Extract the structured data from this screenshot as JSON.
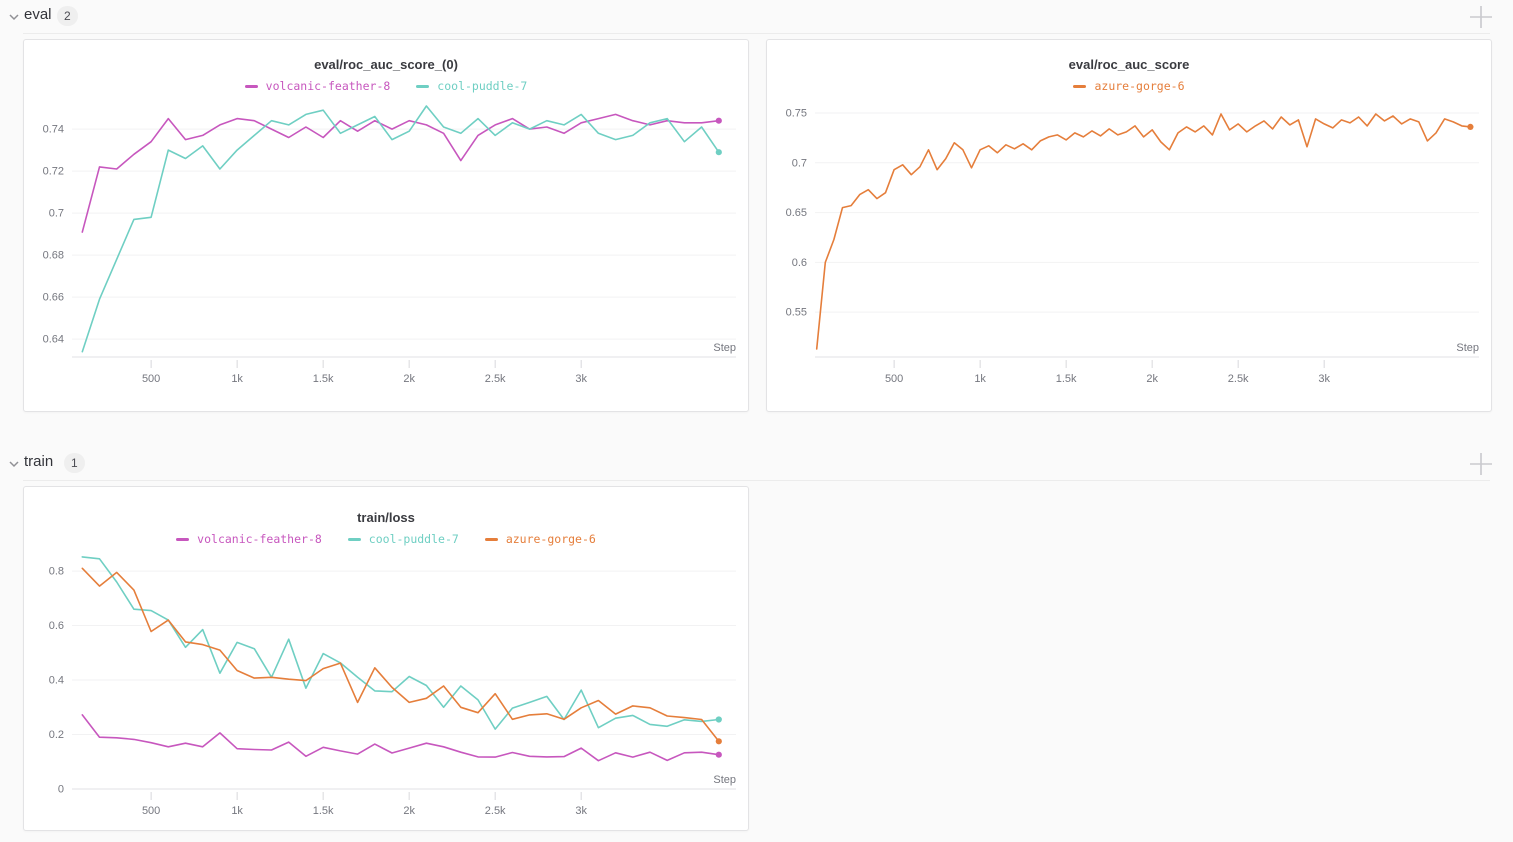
{
  "page": {
    "background": "#fafafa"
  },
  "icons": {
    "chevron_down": "v-shape polyline",
    "plus": "+"
  },
  "sections": [
    {
      "label": "eval",
      "count": "2"
    },
    {
      "label": "train",
      "count": "1"
    }
  ],
  "runs": [
    {
      "name": "volcanic-feather-8",
      "color": "#c757be"
    },
    {
      "name": "cool-puddle-7",
      "color": "#6fcfc3"
    },
    {
      "name": "azure-gorge-6",
      "color": "#e57e3b"
    }
  ],
  "axis_style": {
    "tick_label_color": "#75777f",
    "grid_color": "#f2f2f3",
    "axis_line_color": "#e6e6e9",
    "tick_mark_color": "#d8d8dc"
  },
  "chart_data": [
    {
      "type": "line",
      "title": "eval/roc_auc_score_(0)",
      "xlabel": "Step",
      "xlim": [
        40,
        3900
      ],
      "ylim": [
        0.6315,
        0.7515
      ],
      "xticks": {
        "values": [
          500,
          1000,
          1500,
          2000,
          2500,
          3000
        ],
        "labels": [
          "500",
          "1k",
          "1.5k",
          "2k",
          "2.5k",
          "3k"
        ]
      },
      "yticks": {
        "values": [
          0.74,
          0.72,
          0.7,
          0.68,
          0.66,
          0.64
        ],
        "labels": [
          "0.74",
          "0.72",
          "0.7",
          "0.68",
          "0.66",
          "0.64"
        ]
      },
      "grid": true,
      "legend_position": "top",
      "x": [
        100,
        200,
        300,
        400,
        500,
        600,
        700,
        800,
        900,
        1000,
        1100,
        1200,
        1300,
        1400,
        1500,
        1600,
        1700,
        1800,
        1900,
        2000,
        2100,
        2200,
        2300,
        2400,
        2500,
        2600,
        2700,
        2800,
        2900,
        3000,
        3100,
        3200,
        3300,
        3400,
        3500,
        3600,
        3700,
        3800
      ],
      "series": [
        {
          "name": "volcanic-feather-8",
          "color": "#c757be",
          "end_dot": true,
          "values": [
            0.691,
            0.722,
            0.721,
            0.728,
            0.734,
            0.745,
            0.735,
            0.737,
            0.742,
            0.745,
            0.744,
            0.74,
            0.736,
            0.741,
            0.736,
            0.744,
            0.739,
            0.744,
            0.74,
            0.744,
            0.742,
            0.738,
            0.725,
            0.737,
            0.742,
            0.745,
            0.74,
            0.741,
            0.738,
            0.743,
            0.745,
            0.747,
            0.744,
            0.742,
            0.744,
            0.743,
            0.743,
            0.744
          ]
        },
        {
          "name": "cool-puddle-7",
          "color": "#6fcfc3",
          "end_dot": true,
          "values": [
            0.634,
            0.659,
            0.678,
            0.697,
            0.698,
            0.73,
            0.726,
            0.732,
            0.721,
            0.73,
            0.737,
            0.744,
            0.742,
            0.747,
            0.749,
            0.738,
            0.742,
            0.746,
            0.735,
            0.739,
            0.751,
            0.741,
            0.738,
            0.745,
            0.737,
            0.743,
            0.74,
            0.744,
            0.742,
            0.747,
            0.738,
            0.735,
            0.737,
            0.743,
            0.745,
            0.734,
            0.741,
            0.729
          ]
        }
      ]
    },
    {
      "type": "line",
      "title": "eval/roc_auc_score",
      "xlabel": "Step",
      "xlim": [
        40,
        3900
      ],
      "ylim": [
        0.505,
        0.758
      ],
      "xticks": {
        "values": [
          500,
          1000,
          1500,
          2000,
          2500,
          3000
        ],
        "labels": [
          "500",
          "1k",
          "1.5k",
          "2k",
          "2.5k",
          "3k"
        ]
      },
      "yticks": {
        "values": [
          0.75,
          0.7,
          0.65,
          0.6,
          0.55
        ],
        "labels": [
          "0.75",
          "0.7",
          "0.65",
          "0.6",
          "0.55"
        ]
      },
      "grid": true,
      "legend_position": "top",
      "x": [
        50,
        100,
        150,
        200,
        250,
        300,
        350,
        400,
        450,
        500,
        550,
        600,
        650,
        700,
        750,
        800,
        850,
        900,
        950,
        1000,
        1050,
        1100,
        1150,
        1200,
        1250,
        1300,
        1350,
        1400,
        1450,
        1500,
        1550,
        1600,
        1650,
        1700,
        1750,
        1800,
        1850,
        1900,
        1950,
        2000,
        2050,
        2100,
        2150,
        2200,
        2250,
        2300,
        2350,
        2400,
        2450,
        2500,
        2550,
        2600,
        2650,
        2700,
        2750,
        2800,
        2850,
        2900,
        2950,
        3000,
        3050,
        3100,
        3150,
        3200,
        3250,
        3300,
        3350,
        3400,
        3450,
        3500,
        3550,
        3600,
        3650,
        3700,
        3750,
        3800,
        3850
      ],
      "series": [
        {
          "name": "azure-gorge-6",
          "color": "#e57e3b",
          "end_dot": true,
          "values": [
            0.513,
            0.6,
            0.623,
            0.655,
            0.657,
            0.668,
            0.673,
            0.664,
            0.67,
            0.693,
            0.698,
            0.688,
            0.696,
            0.713,
            0.693,
            0.704,
            0.72,
            0.713,
            0.695,
            0.713,
            0.717,
            0.71,
            0.718,
            0.714,
            0.719,
            0.713,
            0.722,
            0.726,
            0.728,
            0.723,
            0.73,
            0.726,
            0.732,
            0.727,
            0.734,
            0.728,
            0.731,
            0.737,
            0.726,
            0.733,
            0.721,
            0.713,
            0.73,
            0.736,
            0.731,
            0.737,
            0.728,
            0.749,
            0.733,
            0.739,
            0.731,
            0.737,
            0.742,
            0.734,
            0.746,
            0.738,
            0.743,
            0.716,
            0.744,
            0.739,
            0.735,
            0.743,
            0.74,
            0.746,
            0.737,
            0.749,
            0.742,
            0.747,
            0.739,
            0.744,
            0.741,
            0.722,
            0.73,
            0.744,
            0.741,
            0.737,
            0.736
          ]
        }
      ]
    },
    {
      "type": "line",
      "title": "train/loss",
      "xlabel": "Step",
      "xlim": [
        40,
        3900
      ],
      "ylim": [
        0,
        0.87
      ],
      "xticks": {
        "values": [
          500,
          1000,
          1500,
          2000,
          2500,
          3000
        ],
        "labels": [
          "500",
          "1k",
          "1.5k",
          "2k",
          "2.5k",
          "3k"
        ]
      },
      "yticks": {
        "values": [
          0.8,
          0.6,
          0.4,
          0.2,
          0
        ],
        "labels": [
          "0.8",
          "0.6",
          "0.4",
          "0.2",
          "0"
        ]
      },
      "grid": true,
      "legend_position": "top",
      "x": [
        100,
        200,
        300,
        400,
        500,
        600,
        700,
        800,
        900,
        1000,
        1100,
        1200,
        1300,
        1400,
        1500,
        1600,
        1700,
        1800,
        1900,
        2000,
        2100,
        2200,
        2300,
        2400,
        2500,
        2600,
        2700,
        2800,
        2900,
        3000,
        3100,
        3200,
        3300,
        3400,
        3500,
        3600,
        3700,
        3800
      ],
      "series": [
        {
          "name": "volcanic-feather-8",
          "color": "#c757be",
          "end_dot": true,
          "values": [
            0.272,
            0.19,
            0.188,
            0.182,
            0.17,
            0.155,
            0.168,
            0.155,
            0.206,
            0.148,
            0.145,
            0.143,
            0.172,
            0.12,
            0.153,
            0.14,
            0.128,
            0.165,
            0.132,
            0.15,
            0.168,
            0.155,
            0.135,
            0.118,
            0.117,
            0.134,
            0.12,
            0.118,
            0.119,
            0.15,
            0.104,
            0.133,
            0.117,
            0.135,
            0.105,
            0.133,
            0.135,
            0.126
          ]
        },
        {
          "name": "cool-puddle-7",
          "color": "#6fcfc3",
          "end_dot": true,
          "values": [
            0.852,
            0.845,
            0.76,
            0.66,
            0.655,
            0.62,
            0.52,
            0.585,
            0.425,
            0.538,
            0.515,
            0.41,
            0.55,
            0.37,
            0.497,
            0.463,
            0.41,
            0.36,
            0.357,
            0.413,
            0.38,
            0.3,
            0.378,
            0.327,
            0.22,
            0.297,
            0.318,
            0.34,
            0.255,
            0.363,
            0.225,
            0.26,
            0.27,
            0.237,
            0.23,
            0.254,
            0.248,
            0.255
          ]
        },
        {
          "name": "azure-gorge-6",
          "color": "#e57e3b",
          "end_dot": true,
          "values": [
            0.81,
            0.745,
            0.795,
            0.73,
            0.578,
            0.62,
            0.54,
            0.53,
            0.51,
            0.435,
            0.407,
            0.41,
            0.403,
            0.398,
            0.442,
            0.462,
            0.318,
            0.445,
            0.373,
            0.318,
            0.333,
            0.378,
            0.3,
            0.28,
            0.35,
            0.256,
            0.272,
            0.276,
            0.256,
            0.298,
            0.325,
            0.275,
            0.305,
            0.298,
            0.268,
            0.262,
            0.255,
            0.175
          ]
        }
      ]
    }
  ]
}
